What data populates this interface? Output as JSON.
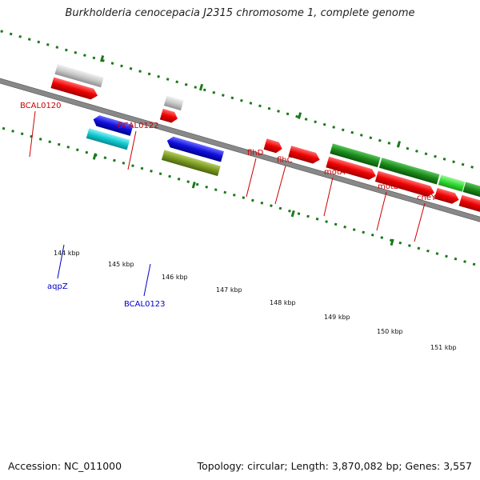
{
  "title": "Burkholderia cenocepacia J2315 chromosome 1, complete genome",
  "footer": {
    "accession": "Accession: NC_011000",
    "info": "Topology: circular; Length: 3,870,082 bp; Genes: 3,557"
  },
  "colors": {
    "cds_red": "#ee0000",
    "pseudo_grey": "#c8c8c8",
    "blue": "#1010dd",
    "cyan": "#10c8d0",
    "olive": "#7a9a20",
    "dark_green": "#1a8a1a",
    "light_green": "#33dd33",
    "backbone": "#888888",
    "tick_green": "#1a7a1a"
  },
  "labels_top": [
    {
      "text": "BCAL0120"
    },
    {
      "text": "BCAL0122"
    },
    {
      "text": "flhD"
    },
    {
      "text": "flhC"
    },
    {
      "text": "motA"
    },
    {
      "text": "motB"
    },
    {
      "text": "cheY"
    }
  ],
  "labels_bottom": [
    {
      "text": "aqpZ"
    },
    {
      "text": "BCAL0123"
    }
  ],
  "ticks": [
    "144 kbp",
    "145 kbp",
    "146 kbp",
    "147 kbp",
    "148 kbp",
    "149 kbp",
    "150 kbp",
    "151 kbp"
  ]
}
